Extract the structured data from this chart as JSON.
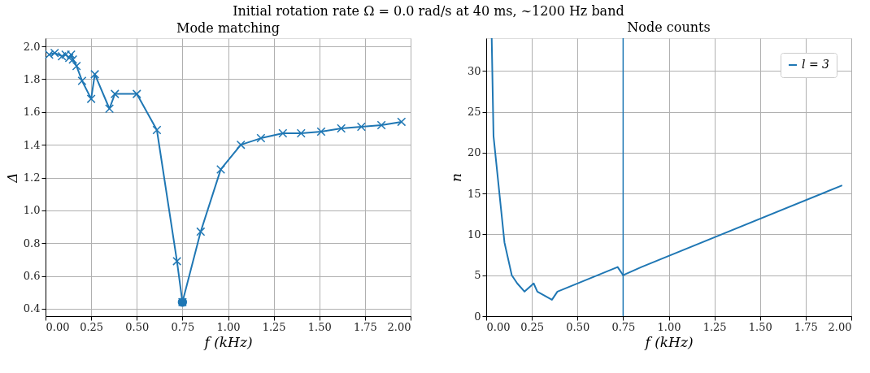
{
  "chart_data": [
    {
      "type": "line",
      "title": "Mode matching",
      "annotations": [
        "Initial rotation rate Ω = 0.0 rad/s at 40 ms, ∼1200 Hz band"
      ],
      "xlabel": "f (kHz)",
      "ylabel": "Δ",
      "series": [
        {
          "type": "line",
          "color": "#1f77b4",
          "marker": "cross",
          "x": [
            0.02,
            0.05,
            0.09,
            0.11,
            0.13,
            0.14,
            0.15,
            0.17,
            0.2,
            0.25,
            0.27,
            0.35,
            0.38,
            0.5,
            0.61,
            0.72,
            0.75,
            0.85,
            0.96,
            1.07,
            1.18,
            1.3,
            1.4,
            1.51,
            1.62,
            1.73,
            1.84,
            1.95
          ],
          "values": [
            1.95,
            1.96,
            1.94,
            1.95,
            1.93,
            1.95,
            1.92,
            1.88,
            1.79,
            1.68,
            1.83,
            1.62,
            1.71,
            1.71,
            1.49,
            0.69,
            0.44,
            0.87,
            1.25,
            1.4,
            1.44,
            1.47,
            1.47,
            1.48,
            1.5,
            1.51,
            1.52,
            1.54
          ]
        },
        {
          "type": "scatter",
          "color": "#1f77b4",
          "marker": "circle",
          "x": [
            0.75
          ],
          "values": [
            0.44
          ]
        }
      ],
      "xlim": [
        0,
        2
      ],
      "xticks": [
        {
          "value": 0,
          "label": "0.00"
        },
        {
          "value": 0.25,
          "label": "0.25"
        },
        {
          "value": 0.5,
          "label": "0.50"
        },
        {
          "value": 0.75,
          "label": "0.75"
        },
        {
          "value": 1,
          "label": "1.00"
        },
        {
          "value": 1.25,
          "label": "1.25"
        },
        {
          "value": 1.5,
          "label": "1.50"
        },
        {
          "value": 1.75,
          "label": "1.75"
        },
        {
          "value": 2,
          "label": "2.00"
        }
      ],
      "ylim": [
        0.355,
        2.05
      ],
      "yticks": [
        0.4,
        0.6,
        0.8,
        {
          "value": 1,
          "label": "1.0"
        },
        1.2,
        1.4,
        1.6,
        1.8,
        {
          "value": 2,
          "label": "2.0"
        }
      ],
      "grid": true,
      "legend": false
    },
    {
      "type": "line",
      "title": "Node counts",
      "xlabel": "f (kHz)",
      "ylabel": "n",
      "series": [
        {
          "name": "l = 3",
          "type": "line",
          "color": "#1f77b4",
          "marker": "none",
          "x": [
            0.03,
            0.04,
            0.1,
            0.13,
            0.14,
            0.17,
            0.21,
            0.26,
            0.28,
            0.36,
            0.39,
            0.72,
            0.75,
            0.85,
            1.95
          ],
          "values": [
            34,
            22,
            9,
            6,
            5,
            4,
            3,
            4,
            3,
            2,
            3,
            6,
            5,
            6,
            16
          ]
        }
      ],
      "ref_lines": [
        {
          "axis": "x",
          "value": 0.75,
          "color": "#1f77b4"
        }
      ],
      "xlim": [
        0,
        2
      ],
      "xticks": [
        {
          "value": 0,
          "label": "0.00"
        },
        {
          "value": 0.25,
          "label": "0.25"
        },
        {
          "value": 0.5,
          "label": "0.50"
        },
        {
          "value": 0.75,
          "label": "0.75"
        },
        {
          "value": 1,
          "label": "1.00"
        },
        {
          "value": 1.25,
          "label": "1.25"
        },
        {
          "value": 1.5,
          "label": "1.50"
        },
        {
          "value": 1.75,
          "label": "1.75"
        },
        {
          "value": 2,
          "label": "2.00"
        }
      ],
      "ylim": [
        0,
        34
      ],
      "yticks": [
        0,
        5,
        10,
        15,
        20,
        25,
        30
      ],
      "grid": true,
      "legend": "top right"
    }
  ]
}
